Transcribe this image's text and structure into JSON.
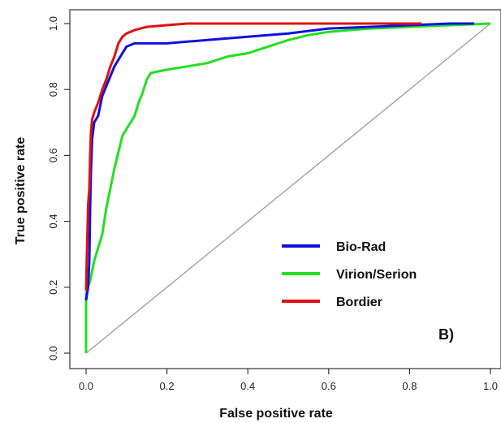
{
  "chart_data": {
    "type": "line",
    "xlabel": "False positive rate",
    "ylabel": "True positive rate",
    "xlim": [
      0,
      1
    ],
    "ylim": [
      0,
      1
    ],
    "x_ticks": [
      "0.0",
      "0.2",
      "0.4",
      "0.6",
      "0.8",
      "1.0"
    ],
    "y_ticks": [
      "0.0",
      "0.2",
      "0.4",
      "0.6",
      "0.8",
      "1.0"
    ],
    "grid": false,
    "legend_position": "bottom-right",
    "panel_label": "B)",
    "diagonal_color": "#a0a0a0",
    "series": [
      {
        "name": "Bio-Rad",
        "color": "#1010e0",
        "points": [
          [
            0,
            0.16
          ],
          [
            0.005,
            0.2
          ],
          [
            0.008,
            0.28
          ],
          [
            0.01,
            0.44
          ],
          [
            0.012,
            0.55
          ],
          [
            0.015,
            0.65
          ],
          [
            0.02,
            0.7
          ],
          [
            0.025,
            0.71
          ],
          [
            0.03,
            0.72
          ],
          [
            0.035,
            0.75
          ],
          [
            0.04,
            0.78
          ],
          [
            0.05,
            0.81
          ],
          [
            0.06,
            0.84
          ],
          [
            0.07,
            0.87
          ],
          [
            0.08,
            0.89
          ],
          [
            0.09,
            0.91
          ],
          [
            0.1,
            0.93
          ],
          [
            0.12,
            0.94
          ],
          [
            0.2,
            0.94
          ],
          [
            0.25,
            0.945
          ],
          [
            0.3,
            0.95
          ],
          [
            0.4,
            0.96
          ],
          [
            0.5,
            0.97
          ],
          [
            0.6,
            0.985
          ],
          [
            0.7,
            0.99
          ],
          [
            0.8,
            0.995
          ],
          [
            0.9,
            1.0
          ],
          [
            0.96,
            1.0
          ]
        ]
      },
      {
        "name": "Virion/Serion",
        "color": "#20e020",
        "points": [
          [
            0,
            0.0
          ],
          [
            0,
            0.18
          ],
          [
            0.01,
            0.22
          ],
          [
            0.02,
            0.28
          ],
          [
            0.03,
            0.32
          ],
          [
            0.04,
            0.36
          ],
          [
            0.05,
            0.44
          ],
          [
            0.06,
            0.5
          ],
          [
            0.07,
            0.56
          ],
          [
            0.08,
            0.61
          ],
          [
            0.09,
            0.66
          ],
          [
            0.1,
            0.68
          ],
          [
            0.11,
            0.7
          ],
          [
            0.12,
            0.72
          ],
          [
            0.13,
            0.76
          ],
          [
            0.14,
            0.79
          ],
          [
            0.15,
            0.83
          ],
          [
            0.16,
            0.85
          ],
          [
            0.2,
            0.86
          ],
          [
            0.25,
            0.87
          ],
          [
            0.3,
            0.88
          ],
          [
            0.35,
            0.9
          ],
          [
            0.4,
            0.91
          ],
          [
            0.45,
            0.93
          ],
          [
            0.5,
            0.95
          ],
          [
            0.55,
            0.965
          ],
          [
            0.6,
            0.975
          ],
          [
            0.7,
            0.985
          ],
          [
            0.8,
            0.99
          ],
          [
            0.9,
            0.995
          ],
          [
            1.0,
            1.0
          ]
        ]
      },
      {
        "name": "Bordier",
        "color": "#e01010",
        "points": [
          [
            0,
            0.19
          ],
          [
            0.002,
            0.3
          ],
          [
            0.005,
            0.45
          ],
          [
            0.008,
            0.5
          ],
          [
            0.01,
            0.6
          ],
          [
            0.012,
            0.67
          ],
          [
            0.015,
            0.71
          ],
          [
            0.02,
            0.73
          ],
          [
            0.03,
            0.76
          ],
          [
            0.04,
            0.8
          ],
          [
            0.05,
            0.83
          ],
          [
            0.06,
            0.87
          ],
          [
            0.07,
            0.9
          ],
          [
            0.08,
            0.94
          ],
          [
            0.09,
            0.96
          ],
          [
            0.1,
            0.97
          ],
          [
            0.12,
            0.98
          ],
          [
            0.15,
            0.99
          ],
          [
            0.2,
            0.995
          ],
          [
            0.25,
            1.0
          ],
          [
            0.5,
            1.0
          ],
          [
            0.83,
            1.0
          ]
        ]
      }
    ]
  }
}
